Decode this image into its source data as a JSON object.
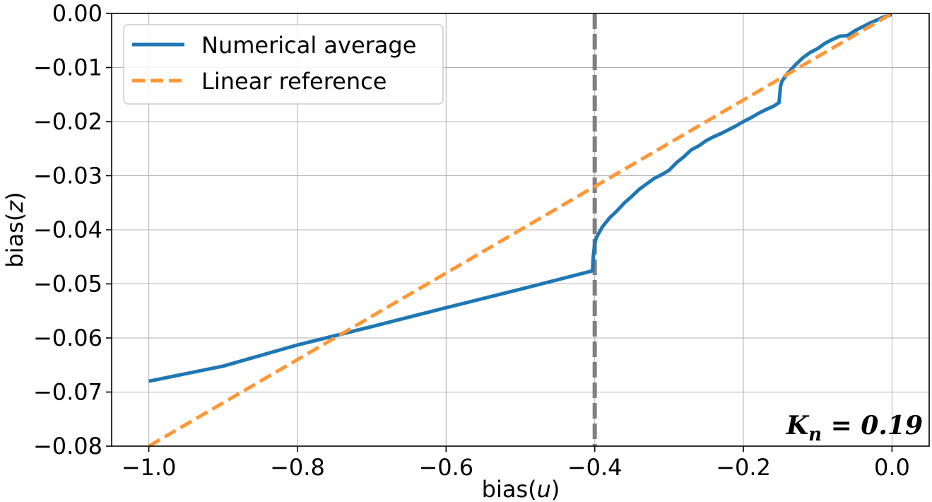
{
  "chart_data": {
    "type": "line",
    "title": "",
    "xlabel_prefix": "bias(",
    "xlabel_var": "u",
    "xlabel_suffix": ")",
    "ylabel_prefix": "bias(",
    "ylabel_var": "z",
    "ylabel_suffix": ")",
    "xlim": [
      -1.05,
      0.05
    ],
    "ylim": [
      -0.08,
      0.0
    ],
    "xticks": [
      -1.0,
      -0.8,
      -0.6,
      -0.4,
      -0.2,
      0.0
    ],
    "xtick_labels": [
      "−1.0",
      "−0.8",
      "−0.6",
      "−0.4",
      "−0.2",
      "0.0"
    ],
    "yticks": [
      0.0,
      -0.01,
      -0.02,
      -0.03,
      -0.04,
      -0.05,
      -0.06,
      -0.07,
      -0.08
    ],
    "ytick_labels": [
      "0.00",
      "−0.01",
      "−0.02",
      "−0.03",
      "−0.04",
      "−0.05",
      "−0.06",
      "−0.07",
      "−0.08"
    ],
    "grid": true,
    "legend_position": "top-left",
    "series": [
      {
        "name": "Numerical average",
        "style": "solid",
        "color": "#1f77b4",
        "x": [
          -1.0,
          -0.9,
          -0.8,
          -0.7,
          -0.6,
          -0.5,
          -0.403,
          -0.402,
          -0.4,
          -0.398,
          -0.39,
          -0.38,
          -0.37,
          -0.36,
          -0.35,
          -0.34,
          -0.33,
          -0.32,
          -0.31,
          -0.3,
          -0.29,
          -0.28,
          -0.27,
          -0.26,
          -0.25,
          -0.24,
          -0.23,
          -0.22,
          -0.21,
          -0.2,
          -0.19,
          -0.18,
          -0.17,
          -0.16,
          -0.152,
          -0.15,
          -0.148,
          -0.14,
          -0.13,
          -0.12,
          -0.11,
          -0.1,
          -0.09,
          -0.08,
          -0.07,
          -0.06,
          -0.05,
          -0.04,
          -0.03,
          -0.02,
          -0.01,
          0.0
        ],
        "y": [
          -0.068,
          -0.0652,
          -0.0613,
          -0.0579,
          -0.0544,
          -0.051,
          -0.0476,
          -0.045,
          -0.0425,
          -0.0415,
          -0.0395,
          -0.0378,
          -0.0365,
          -0.035,
          -0.0338,
          -0.0325,
          -0.0315,
          -0.0305,
          -0.0298,
          -0.029,
          -0.0276,
          -0.0265,
          -0.0252,
          -0.0245,
          -0.0235,
          -0.0228,
          -0.0222,
          -0.0215,
          -0.0208,
          -0.02,
          -0.0193,
          -0.0185,
          -0.0178,
          -0.0172,
          -0.0165,
          -0.0135,
          -0.0125,
          -0.011,
          -0.0095,
          -0.0082,
          -0.0072,
          -0.0065,
          -0.0055,
          -0.0048,
          -0.0042,
          -0.0041,
          -0.0032,
          -0.0025,
          -0.0018,
          -0.0012,
          -0.0006,
          -0.0002
        ]
      },
      {
        "name": "Linear reference",
        "style": "dashed",
        "color": "#ff9736",
        "x": [
          -1.0,
          0.0
        ],
        "y": [
          -0.08,
          0.0
        ]
      }
    ],
    "vline": {
      "x": -0.4,
      "color": "#808080",
      "style": "dashed"
    },
    "annotation": {
      "text_main": "K",
      "text_sub": "n",
      "text_rest": " = 0.19",
      "position": "bottom-right"
    }
  }
}
